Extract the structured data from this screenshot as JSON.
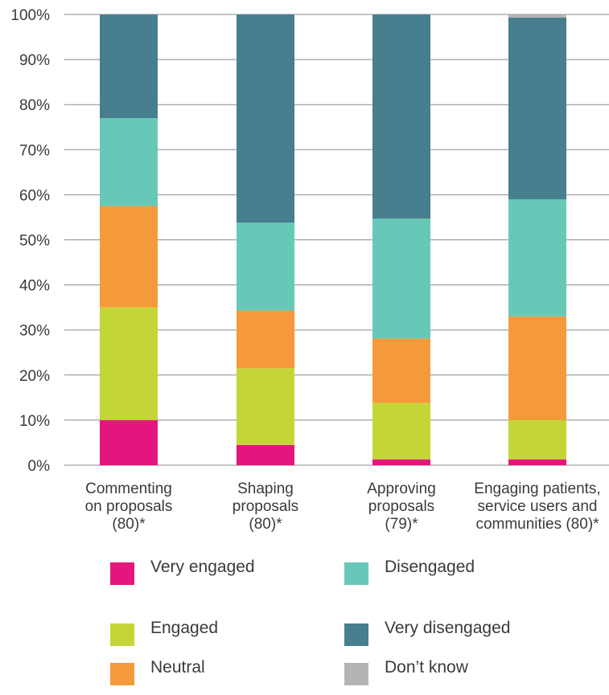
{
  "chart_data": {
    "type": "bar",
    "stacked": true,
    "categories": [
      [
        "Commenting",
        "on proposals",
        "(80)*"
      ],
      [
        "Shaping",
        "proposals",
        "(80)*"
      ],
      [
        "Approving",
        "proposals",
        "(79)*"
      ],
      [
        "Engaging patients,",
        "service users and",
        "communities (80)*"
      ]
    ],
    "series": [
      {
        "name": "Very engaged",
        "color": "#e5157e",
        "values": [
          10,
          4.5,
          1.3,
          1.3
        ]
      },
      {
        "name": "Engaged",
        "color": "#c4d637",
        "values": [
          25,
          17,
          12.5,
          8.7
        ]
      },
      {
        "name": "Neutral",
        "color": "#f59a3a",
        "values": [
          22.5,
          12.8,
          14.3,
          23
        ]
      },
      {
        "name": "Disengaged",
        "color": "#68c8b8",
        "values": [
          19.5,
          19.5,
          26.6,
          26
        ]
      },
      {
        "name": "Very disengaged",
        "color": "#477f8f",
        "values": [
          23,
          46.2,
          45.3,
          40.3
        ]
      },
      {
        "name": "Don’t know",
        "color": "#b4b4b6",
        "values": [
          0,
          0,
          0,
          0.7
        ]
      }
    ],
    "ylim": [
      0,
      100
    ],
    "yticks": [
      "0%",
      "10%",
      "20%",
      "30%",
      "40%",
      "50%",
      "60%",
      "70%",
      "80%",
      "90%",
      "100%"
    ],
    "grid": true,
    "legend_position": "bottom"
  }
}
